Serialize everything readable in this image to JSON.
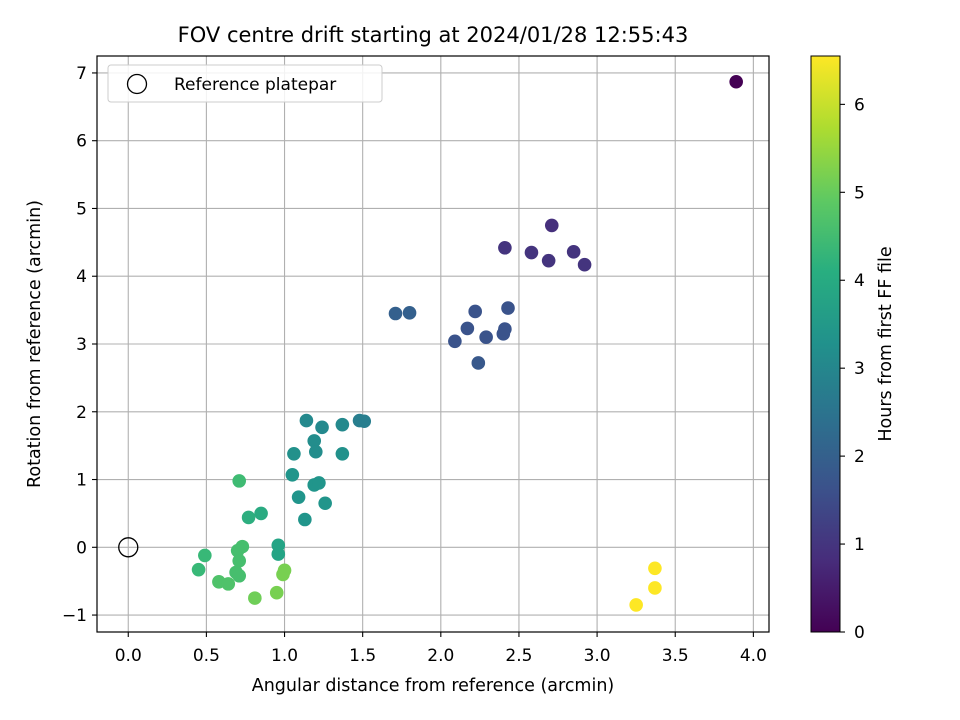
{
  "chart_data": {
    "type": "scatter",
    "title": "FOV centre drift starting at 2024/01/28 12:55:43",
    "xlabel": "Angular distance from reference (arcmin)",
    "ylabel": "Rotation from reference (arcmin)",
    "xlim": [
      -0.2,
      4.1
    ],
    "ylim": [
      -1.25,
      7.25
    ],
    "xticks": [
      0.0,
      0.5,
      1.0,
      1.5,
      2.0,
      2.5,
      3.0,
      3.5,
      4.0
    ],
    "xtick_labels": [
      "0.0",
      "0.5",
      "1.0",
      "1.5",
      "2.0",
      "2.5",
      "3.0",
      "3.5",
      "4.0"
    ],
    "yticks": [
      -1,
      0,
      1,
      2,
      3,
      4,
      5,
      6,
      7
    ],
    "ytick_labels": [
      "−1",
      "0",
      "1",
      "2",
      "3",
      "4",
      "5",
      "6",
      "7"
    ],
    "grid": true,
    "legend": {
      "position": "top-left",
      "entries": [
        "Reference platepar"
      ]
    },
    "reference_point": {
      "x": 0.0,
      "y": 0.0
    },
    "colorbar": {
      "label": "Hours from first FF file",
      "range": [
        0,
        6.55
      ],
      "ticks": [
        0,
        1,
        2,
        3,
        4,
        5,
        6
      ],
      "tick_labels": [
        "0",
        "1",
        "2",
        "3",
        "4",
        "5",
        "6"
      ],
      "colormap": "viridis"
    },
    "points": [
      {
        "x": 3.89,
        "y": 6.87,
        "c": 0.0
      },
      {
        "x": 2.71,
        "y": 4.75,
        "c": 0.9
      },
      {
        "x": 2.41,
        "y": 4.42,
        "c": 1.0
      },
      {
        "x": 2.58,
        "y": 4.35,
        "c": 1.0
      },
      {
        "x": 2.69,
        "y": 4.23,
        "c": 1.0
      },
      {
        "x": 2.85,
        "y": 4.36,
        "c": 1.0
      },
      {
        "x": 2.92,
        "y": 4.17,
        "c": 1.0
      },
      {
        "x": 2.43,
        "y": 3.53,
        "c": 1.7
      },
      {
        "x": 2.22,
        "y": 3.48,
        "c": 1.7
      },
      {
        "x": 2.17,
        "y": 3.23,
        "c": 1.7
      },
      {
        "x": 2.09,
        "y": 3.04,
        "c": 1.7
      },
      {
        "x": 2.29,
        "y": 3.1,
        "c": 1.7
      },
      {
        "x": 2.4,
        "y": 3.15,
        "c": 1.7
      },
      {
        "x": 2.41,
        "y": 3.22,
        "c": 1.7
      },
      {
        "x": 2.24,
        "y": 2.72,
        "c": 1.8
      },
      {
        "x": 1.71,
        "y": 3.45,
        "c": 2.0
      },
      {
        "x": 1.8,
        "y": 3.46,
        "c": 2.0
      },
      {
        "x": 1.48,
        "y": 1.87,
        "c": 2.8
      },
      {
        "x": 1.51,
        "y": 1.86,
        "c": 2.8
      },
      {
        "x": 1.37,
        "y": 1.81,
        "c": 3.1
      },
      {
        "x": 1.24,
        "y": 1.77,
        "c": 3.1
      },
      {
        "x": 1.14,
        "y": 1.87,
        "c": 3.1
      },
      {
        "x": 1.19,
        "y": 1.57,
        "c": 3.2
      },
      {
        "x": 1.2,
        "y": 1.41,
        "c": 3.2
      },
      {
        "x": 1.06,
        "y": 1.38,
        "c": 3.3
      },
      {
        "x": 1.37,
        "y": 1.38,
        "c": 3.3
      },
      {
        "x": 1.05,
        "y": 1.07,
        "c": 3.4
      },
      {
        "x": 1.19,
        "y": 0.92,
        "c": 3.4
      },
      {
        "x": 1.22,
        "y": 0.95,
        "c": 3.4
      },
      {
        "x": 1.09,
        "y": 0.74,
        "c": 3.4
      },
      {
        "x": 1.26,
        "y": 0.65,
        "c": 3.4
      },
      {
        "x": 1.13,
        "y": 0.41,
        "c": 3.4
      },
      {
        "x": 0.85,
        "y": 0.5,
        "c": 4.0
      },
      {
        "x": 0.77,
        "y": 0.44,
        "c": 4.1
      },
      {
        "x": 0.71,
        "y": 0.98,
        "c": 4.5
      },
      {
        "x": 0.96,
        "y": 0.03,
        "c": 3.8
      },
      {
        "x": 0.96,
        "y": -0.1,
        "c": 3.8
      },
      {
        "x": 0.49,
        "y": -0.12,
        "c": 4.4
      },
      {
        "x": 0.45,
        "y": -0.33,
        "c": 4.4
      },
      {
        "x": 0.73,
        "y": 0.01,
        "c": 4.6
      },
      {
        "x": 0.7,
        "y": -0.05,
        "c": 4.6
      },
      {
        "x": 0.71,
        "y": -0.2,
        "c": 4.6
      },
      {
        "x": 0.69,
        "y": -0.37,
        "c": 4.6
      },
      {
        "x": 0.71,
        "y": -0.42,
        "c": 4.6
      },
      {
        "x": 0.58,
        "y": -0.51,
        "c": 4.7
      },
      {
        "x": 0.64,
        "y": -0.54,
        "c": 4.7
      },
      {
        "x": 1.0,
        "y": -0.34,
        "c": 5.2
      },
      {
        "x": 0.99,
        "y": -0.4,
        "c": 5.2
      },
      {
        "x": 0.81,
        "y": -0.75,
        "c": 5.1
      },
      {
        "x": 0.95,
        "y": -0.67,
        "c": 5.2
      },
      {
        "x": 3.37,
        "y": -0.31,
        "c": 6.55
      },
      {
        "x": 3.37,
        "y": -0.6,
        "c": 6.55
      },
      {
        "x": 3.25,
        "y": -0.85,
        "c": 6.55
      }
    ]
  }
}
